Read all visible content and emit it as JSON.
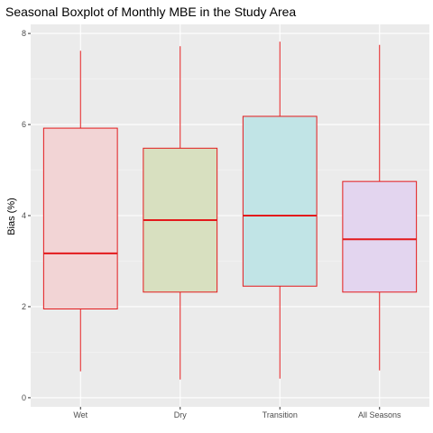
{
  "chart_data": {
    "type": "boxplot",
    "title": "Seasonal Boxplot of Monthly MBE in the Study Area",
    "xlabel": "",
    "ylabel": "Bias (%)",
    "ylim": [
      -0.2,
      8.2
    ],
    "yticks": [
      0,
      2,
      4,
      6,
      8
    ],
    "categories": [
      "Wet",
      "Dry",
      "Transition",
      "All Seasons"
    ],
    "boxes": [
      {
        "category": "Wet",
        "min": 0.58,
        "q1": 1.95,
        "median": 3.17,
        "q3": 5.92,
        "max": 7.62,
        "fill": "#f2d4d5"
      },
      {
        "category": "Dry",
        "min": 0.4,
        "q1": 2.32,
        "median": 3.9,
        "q3": 5.48,
        "max": 7.72,
        "fill": "#d8e0c0"
      },
      {
        "category": "Transition",
        "min": 0.42,
        "q1": 2.45,
        "median": 4.0,
        "q3": 6.18,
        "max": 7.82,
        "fill": "#c1e4e6"
      },
      {
        "category": "All Seasons",
        "min": 0.6,
        "q1": 2.32,
        "median": 3.48,
        "q3": 4.75,
        "max": 7.75,
        "fill": "#e3d5ef"
      }
    ],
    "grid": true,
    "legend": "none",
    "colors": {
      "panel_bg": "#ebebeb",
      "grid_major": "#ffffff",
      "grid_minor": "#f5f5f5",
      "box_outline": "#e31a1c",
      "median": "#e31a1c",
      "axis_text": "#4d4d4d",
      "tick_mark": "#333333"
    }
  }
}
